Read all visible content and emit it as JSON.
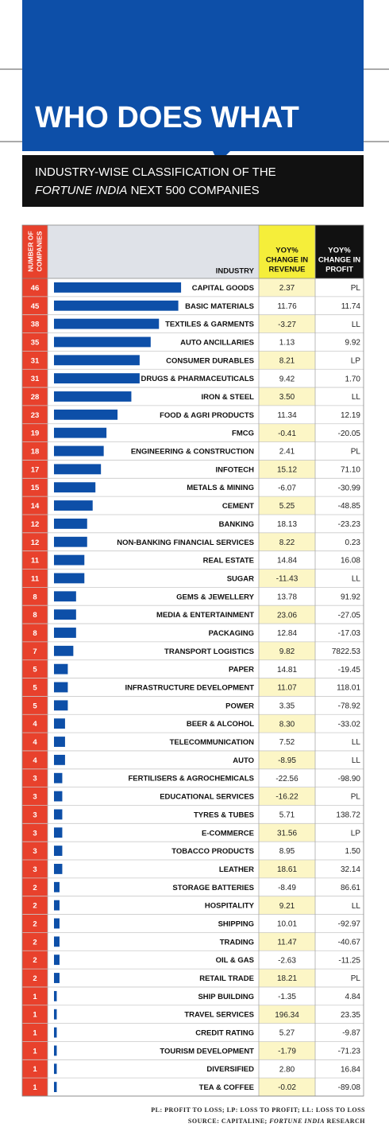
{
  "header": {
    "title": "WHO DOES WHAT",
    "subtitle_line1": "INDUSTRY-WISE CLASSIFICATION OF THE",
    "subtitle_italic": "FORTUNE INDIA",
    "subtitle_rest": "NEXT 500 COMPANIES"
  },
  "table": {
    "columns": {
      "count": [
        "NUMBER OF",
        "COMPANIES"
      ],
      "industry": "INDUSTRY",
      "revenue": [
        "YOY%",
        "CHANGE IN",
        "REVENUE"
      ],
      "profit": [
        "YOY%",
        "CHANGE IN",
        "PROFIT"
      ]
    },
    "rows": [
      [
        46,
        "CAPITAL GOODS",
        "2.37",
        "PL"
      ],
      [
        45,
        "BASIC MATERIALS",
        "11.76",
        "11.74"
      ],
      [
        38,
        "TEXTILES & GARMENTS",
        "-3.27",
        "LL"
      ],
      [
        35,
        "AUTO ANCILLARIES",
        "1.13",
        "9.92"
      ],
      [
        31,
        "CONSUMER DURABLES",
        "8.21",
        "LP"
      ],
      [
        31,
        "DRUGS & PHARMACEUTICALS",
        "9.42",
        "1.70"
      ],
      [
        28,
        "IRON & STEEL",
        "3.50",
        "LL"
      ],
      [
        23,
        "FOOD & AGRI PRODUCTS",
        "11.34",
        "12.19"
      ],
      [
        19,
        "FMCG",
        "-0.41",
        "-20.05"
      ],
      [
        18,
        "ENGINEERING & CONSTRUCTION",
        "2.41",
        "PL"
      ],
      [
        17,
        "INFOTECH",
        "15.12",
        "71.10"
      ],
      [
        15,
        "METALS & MINING",
        "-6.07",
        "-30.99"
      ],
      [
        14,
        "CEMENT",
        "5.25",
        "-48.85"
      ],
      [
        12,
        "BANKING",
        "18.13",
        "-23.23"
      ],
      [
        12,
        "NON-BANKING FINANCIAL SERVICES",
        "8.22",
        "0.23"
      ],
      [
        11,
        "REAL ESTATE",
        "14.84",
        "16.08"
      ],
      [
        11,
        "SUGAR",
        "-11.43",
        "LL"
      ],
      [
        8,
        "GEMS & JEWELLERY",
        "13.78",
        "91.92"
      ],
      [
        8,
        "MEDIA & ENTERTAINMENT",
        "23.06",
        "-27.05"
      ],
      [
        8,
        "PACKAGING",
        "12.84",
        "-17.03"
      ],
      [
        7,
        "TRANSPORT LOGISTICS",
        "9.82",
        "7822.53"
      ],
      [
        5,
        "PAPER",
        "14.81",
        "-19.45"
      ],
      [
        5,
        "INFRASTRUCTURE DEVELOPMENT",
        "11.07",
        "118.01"
      ],
      [
        5,
        "POWER",
        "3.35",
        "-78.92"
      ],
      [
        4,
        "BEER & ALCOHOL",
        "8.30",
        "-33.02"
      ],
      [
        4,
        "TELECOMMUNICATION",
        "7.52",
        "LL"
      ],
      [
        4,
        "AUTO",
        "-8.95",
        "LL"
      ],
      [
        3,
        "FERTILISERS & AGROCHEMICALS",
        "-22.56",
        "-98.90"
      ],
      [
        3,
        "EDUCATIONAL SERVICES",
        "-16.22",
        "PL"
      ],
      [
        3,
        "TYRES & TUBES",
        "5.71",
        "138.72"
      ],
      [
        3,
        "E-COMMERCE",
        "31.56",
        "LP"
      ],
      [
        3,
        "TOBACCO PRODUCTS",
        "8.95",
        "1.50"
      ],
      [
        3,
        "LEATHER",
        "18.61",
        "32.14"
      ],
      [
        2,
        "STORAGE BATTERIES",
        "-8.49",
        "86.61"
      ],
      [
        2,
        "HOSPITALITY",
        "9.21",
        "LL"
      ],
      [
        2,
        "SHIPPING",
        "10.01",
        "-92.97"
      ],
      [
        2,
        "TRADING",
        "11.47",
        "-40.67"
      ],
      [
        2,
        "OIL & GAS",
        "-2.63",
        "-11.25"
      ],
      [
        2,
        "RETAIL TRADE",
        "18.21",
        "PL"
      ],
      [
        1,
        "SHIP BUILDING",
        "-1.35",
        "4.84"
      ],
      [
        1,
        "TRAVEL SERVICES",
        "196.34",
        "23.35"
      ],
      [
        1,
        "CREDIT RATING",
        "5.27",
        "-9.87"
      ],
      [
        1,
        "TOURISM DEVELOPMENT",
        "-1.79",
        "-71.23"
      ],
      [
        1,
        "DIVERSIFIED",
        "2.80",
        "16.84"
      ],
      [
        1,
        "TEA & COFFEE",
        "-0.02",
        "-89.08"
      ]
    ],
    "bar_color": "#0d4fa8"
  },
  "footnotes": {
    "legend": "PL: PROFIT TO LOSS; LP: LOSS TO PROFIT; LL: LOSS TO LOSS",
    "source": "SOURCE: CAPITALINE;",
    "source_italic": "FORTUNE INDIA",
    "source_rest": "RESEARCH"
  }
}
